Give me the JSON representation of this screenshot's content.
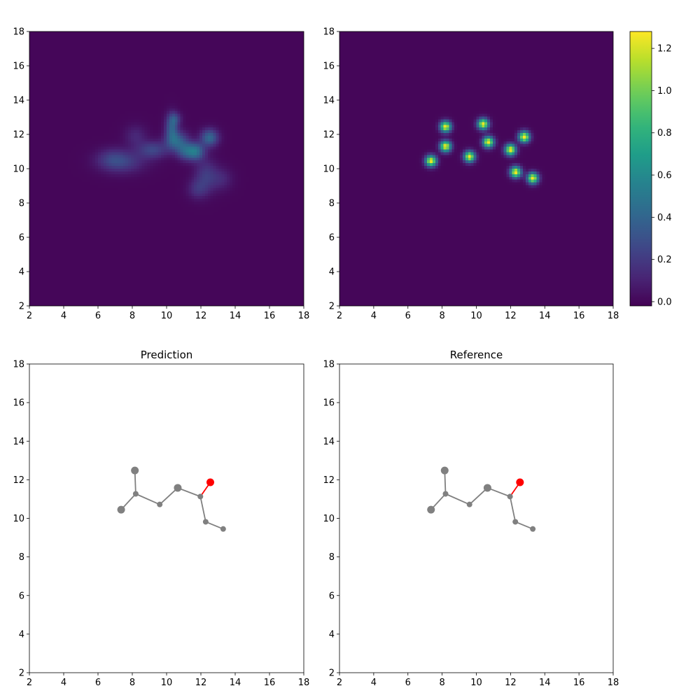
{
  "chart_data": [
    {
      "id": "heatmap-predicted",
      "type": "heatmap",
      "title": "",
      "xlabel": "",
      "ylabel": "",
      "xlim": [
        2,
        18
      ],
      "ylim": [
        2,
        18
      ],
      "xticks": [
        2,
        4,
        6,
        8,
        10,
        12,
        14,
        16,
        18
      ],
      "yticks": [
        2,
        4,
        6,
        8,
        10,
        12,
        14,
        16,
        18
      ],
      "colormap": "viridis",
      "blobs": [
        {
          "x": 7.4,
          "y": 10.4,
          "sx": 0.9,
          "sy": 0.45,
          "amp": 0.22
        },
        {
          "x": 6.8,
          "y": 10.6,
          "sx": 0.6,
          "sy": 0.4,
          "amp": 0.12
        },
        {
          "x": 8.2,
          "y": 11.9,
          "sx": 0.45,
          "sy": 0.45,
          "amp": 0.12
        },
        {
          "x": 9.2,
          "y": 11.1,
          "sx": 0.6,
          "sy": 0.35,
          "amp": 0.25
        },
        {
          "x": 10.3,
          "y": 12.4,
          "sx": 0.25,
          "sy": 0.55,
          "amp": 0.35
        },
        {
          "x": 10.6,
          "y": 11.6,
          "sx": 0.45,
          "sy": 0.4,
          "amp": 0.38
        },
        {
          "x": 11.1,
          "y": 11.0,
          "sx": 0.35,
          "sy": 0.35,
          "amp": 0.3
        },
        {
          "x": 11.7,
          "y": 11.0,
          "sx": 0.35,
          "sy": 0.35,
          "amp": 0.45
        },
        {
          "x": 12.5,
          "y": 11.8,
          "sx": 0.35,
          "sy": 0.35,
          "amp": 0.42
        },
        {
          "x": 12.3,
          "y": 9.6,
          "sx": 0.45,
          "sy": 0.65,
          "amp": 0.2
        },
        {
          "x": 11.8,
          "y": 8.8,
          "sx": 0.4,
          "sy": 0.4,
          "amp": 0.15
        },
        {
          "x": 13.2,
          "y": 9.4,
          "sx": 0.45,
          "sy": 0.45,
          "amp": 0.12
        },
        {
          "x": 10.5,
          "y": 12.9,
          "sx": 0.25,
          "sy": 0.25,
          "amp": 0.2
        }
      ]
    },
    {
      "id": "heatmap-reference",
      "type": "heatmap",
      "title": "",
      "xlabel": "",
      "ylabel": "",
      "xlim": [
        2,
        18
      ],
      "ylim": [
        2,
        18
      ],
      "xticks": [
        2,
        4,
        6,
        8,
        10,
        12,
        14,
        16,
        18
      ],
      "yticks": [
        2,
        4,
        6,
        8,
        10,
        12,
        14,
        16,
        18
      ],
      "colormap": "viridis",
      "blob_sigma": 0.22,
      "blobs": [
        {
          "x": 7.35,
          "y": 10.45,
          "amp": 1.27
        },
        {
          "x": 8.2,
          "y": 12.45,
          "amp": 1.27
        },
        {
          "x": 8.2,
          "y": 11.3,
          "amp": 1.27
        },
        {
          "x": 9.6,
          "y": 10.7,
          "amp": 1.27
        },
        {
          "x": 10.4,
          "y": 12.6,
          "amp": 1.27
        },
        {
          "x": 10.7,
          "y": 11.55,
          "amp": 1.27
        },
        {
          "x": 12.0,
          "y": 11.1,
          "amp": 1.27
        },
        {
          "x": 12.8,
          "y": 11.85,
          "amp": 1.27
        },
        {
          "x": 12.3,
          "y": 9.8,
          "amp": 1.27
        },
        {
          "x": 13.3,
          "y": 9.45,
          "amp": 1.27
        }
      ]
    },
    {
      "id": "colorbar",
      "type": "colorbar",
      "range": [
        -0.02,
        1.28
      ],
      "ticks": [
        "0.0",
        "0.2",
        "0.4",
        "0.6",
        "0.8",
        "1.0",
        "1.2"
      ],
      "tick_values": [
        0.0,
        0.2,
        0.4,
        0.6,
        0.8,
        1.0,
        1.2
      ]
    },
    {
      "id": "molecule-prediction",
      "type": "scatter",
      "title": "Prediction",
      "xlabel": "",
      "ylabel": "",
      "xlim": [
        2,
        18
      ],
      "ylim": [
        2,
        18
      ],
      "xticks": [
        2,
        4,
        6,
        8,
        10,
        12,
        14,
        16,
        18
      ],
      "yticks": [
        2,
        4,
        6,
        8,
        10,
        12,
        14,
        16,
        18
      ],
      "atoms": [
        {
          "x": 7.35,
          "y": 10.45,
          "size": "large",
          "color": "#808080"
        },
        {
          "x": 8.15,
          "y": 12.48,
          "size": "large",
          "color": "#808080"
        },
        {
          "x": 8.2,
          "y": 11.27,
          "size": "small",
          "color": "#808080"
        },
        {
          "x": 9.6,
          "y": 10.72,
          "size": "small",
          "color": "#808080"
        },
        {
          "x": 10.65,
          "y": 11.58,
          "size": "large",
          "color": "#808080"
        },
        {
          "x": 11.97,
          "y": 11.13,
          "size": "small",
          "color": "#808080"
        },
        {
          "x": 12.55,
          "y": 11.87,
          "size": "large",
          "color": "#ff0000"
        },
        {
          "x": 12.28,
          "y": 9.82,
          "size": "small",
          "color": "#808080"
        },
        {
          "x": 13.3,
          "y": 9.45,
          "size": "small",
          "color": "#808080"
        }
      ],
      "bonds": [
        {
          "a": 0,
          "b": 2,
          "color": "#808080"
        },
        {
          "a": 1,
          "b": 2,
          "color": "#808080"
        },
        {
          "a": 2,
          "b": 3,
          "color": "#808080"
        },
        {
          "a": 3,
          "b": 4,
          "color": "#808080"
        },
        {
          "a": 4,
          "b": 5,
          "color": "#808080"
        },
        {
          "a": 5,
          "b": 6,
          "color": "#ff0000"
        },
        {
          "a": 5,
          "b": 7,
          "color": "#808080"
        },
        {
          "a": 7,
          "b": 8,
          "color": "#808080"
        }
      ]
    },
    {
      "id": "molecule-reference",
      "type": "scatter",
      "title": "Reference",
      "xlabel": "",
      "ylabel": "",
      "xlim": [
        2,
        18
      ],
      "ylim": [
        2,
        18
      ],
      "xticks": [
        2,
        4,
        6,
        8,
        10,
        12,
        14,
        16,
        18
      ],
      "yticks": [
        2,
        4,
        6,
        8,
        10,
        12,
        14,
        16,
        18
      ],
      "atoms": [
        {
          "x": 7.35,
          "y": 10.45,
          "size": "large",
          "color": "#808080"
        },
        {
          "x": 8.15,
          "y": 12.48,
          "size": "large",
          "color": "#808080"
        },
        {
          "x": 8.2,
          "y": 11.27,
          "size": "small",
          "color": "#808080"
        },
        {
          "x": 9.6,
          "y": 10.72,
          "size": "small",
          "color": "#808080"
        },
        {
          "x": 10.65,
          "y": 11.58,
          "size": "large",
          "color": "#808080"
        },
        {
          "x": 11.97,
          "y": 11.13,
          "size": "small",
          "color": "#808080"
        },
        {
          "x": 12.55,
          "y": 11.87,
          "size": "large",
          "color": "#ff0000"
        },
        {
          "x": 12.28,
          "y": 9.82,
          "size": "small",
          "color": "#808080"
        },
        {
          "x": 13.3,
          "y": 9.45,
          "size": "small",
          "color": "#808080"
        }
      ],
      "bonds": [
        {
          "a": 0,
          "b": 2,
          "color": "#808080"
        },
        {
          "a": 1,
          "b": 2,
          "color": "#808080"
        },
        {
          "a": 2,
          "b": 3,
          "color": "#808080"
        },
        {
          "a": 3,
          "b": 4,
          "color": "#808080"
        },
        {
          "a": 4,
          "b": 5,
          "color": "#808080"
        },
        {
          "a": 5,
          "b": 6,
          "color": "#ff0000"
        },
        {
          "a": 5,
          "b": 7,
          "color": "#808080"
        },
        {
          "a": 7,
          "b": 8,
          "color": "#808080"
        }
      ]
    }
  ]
}
